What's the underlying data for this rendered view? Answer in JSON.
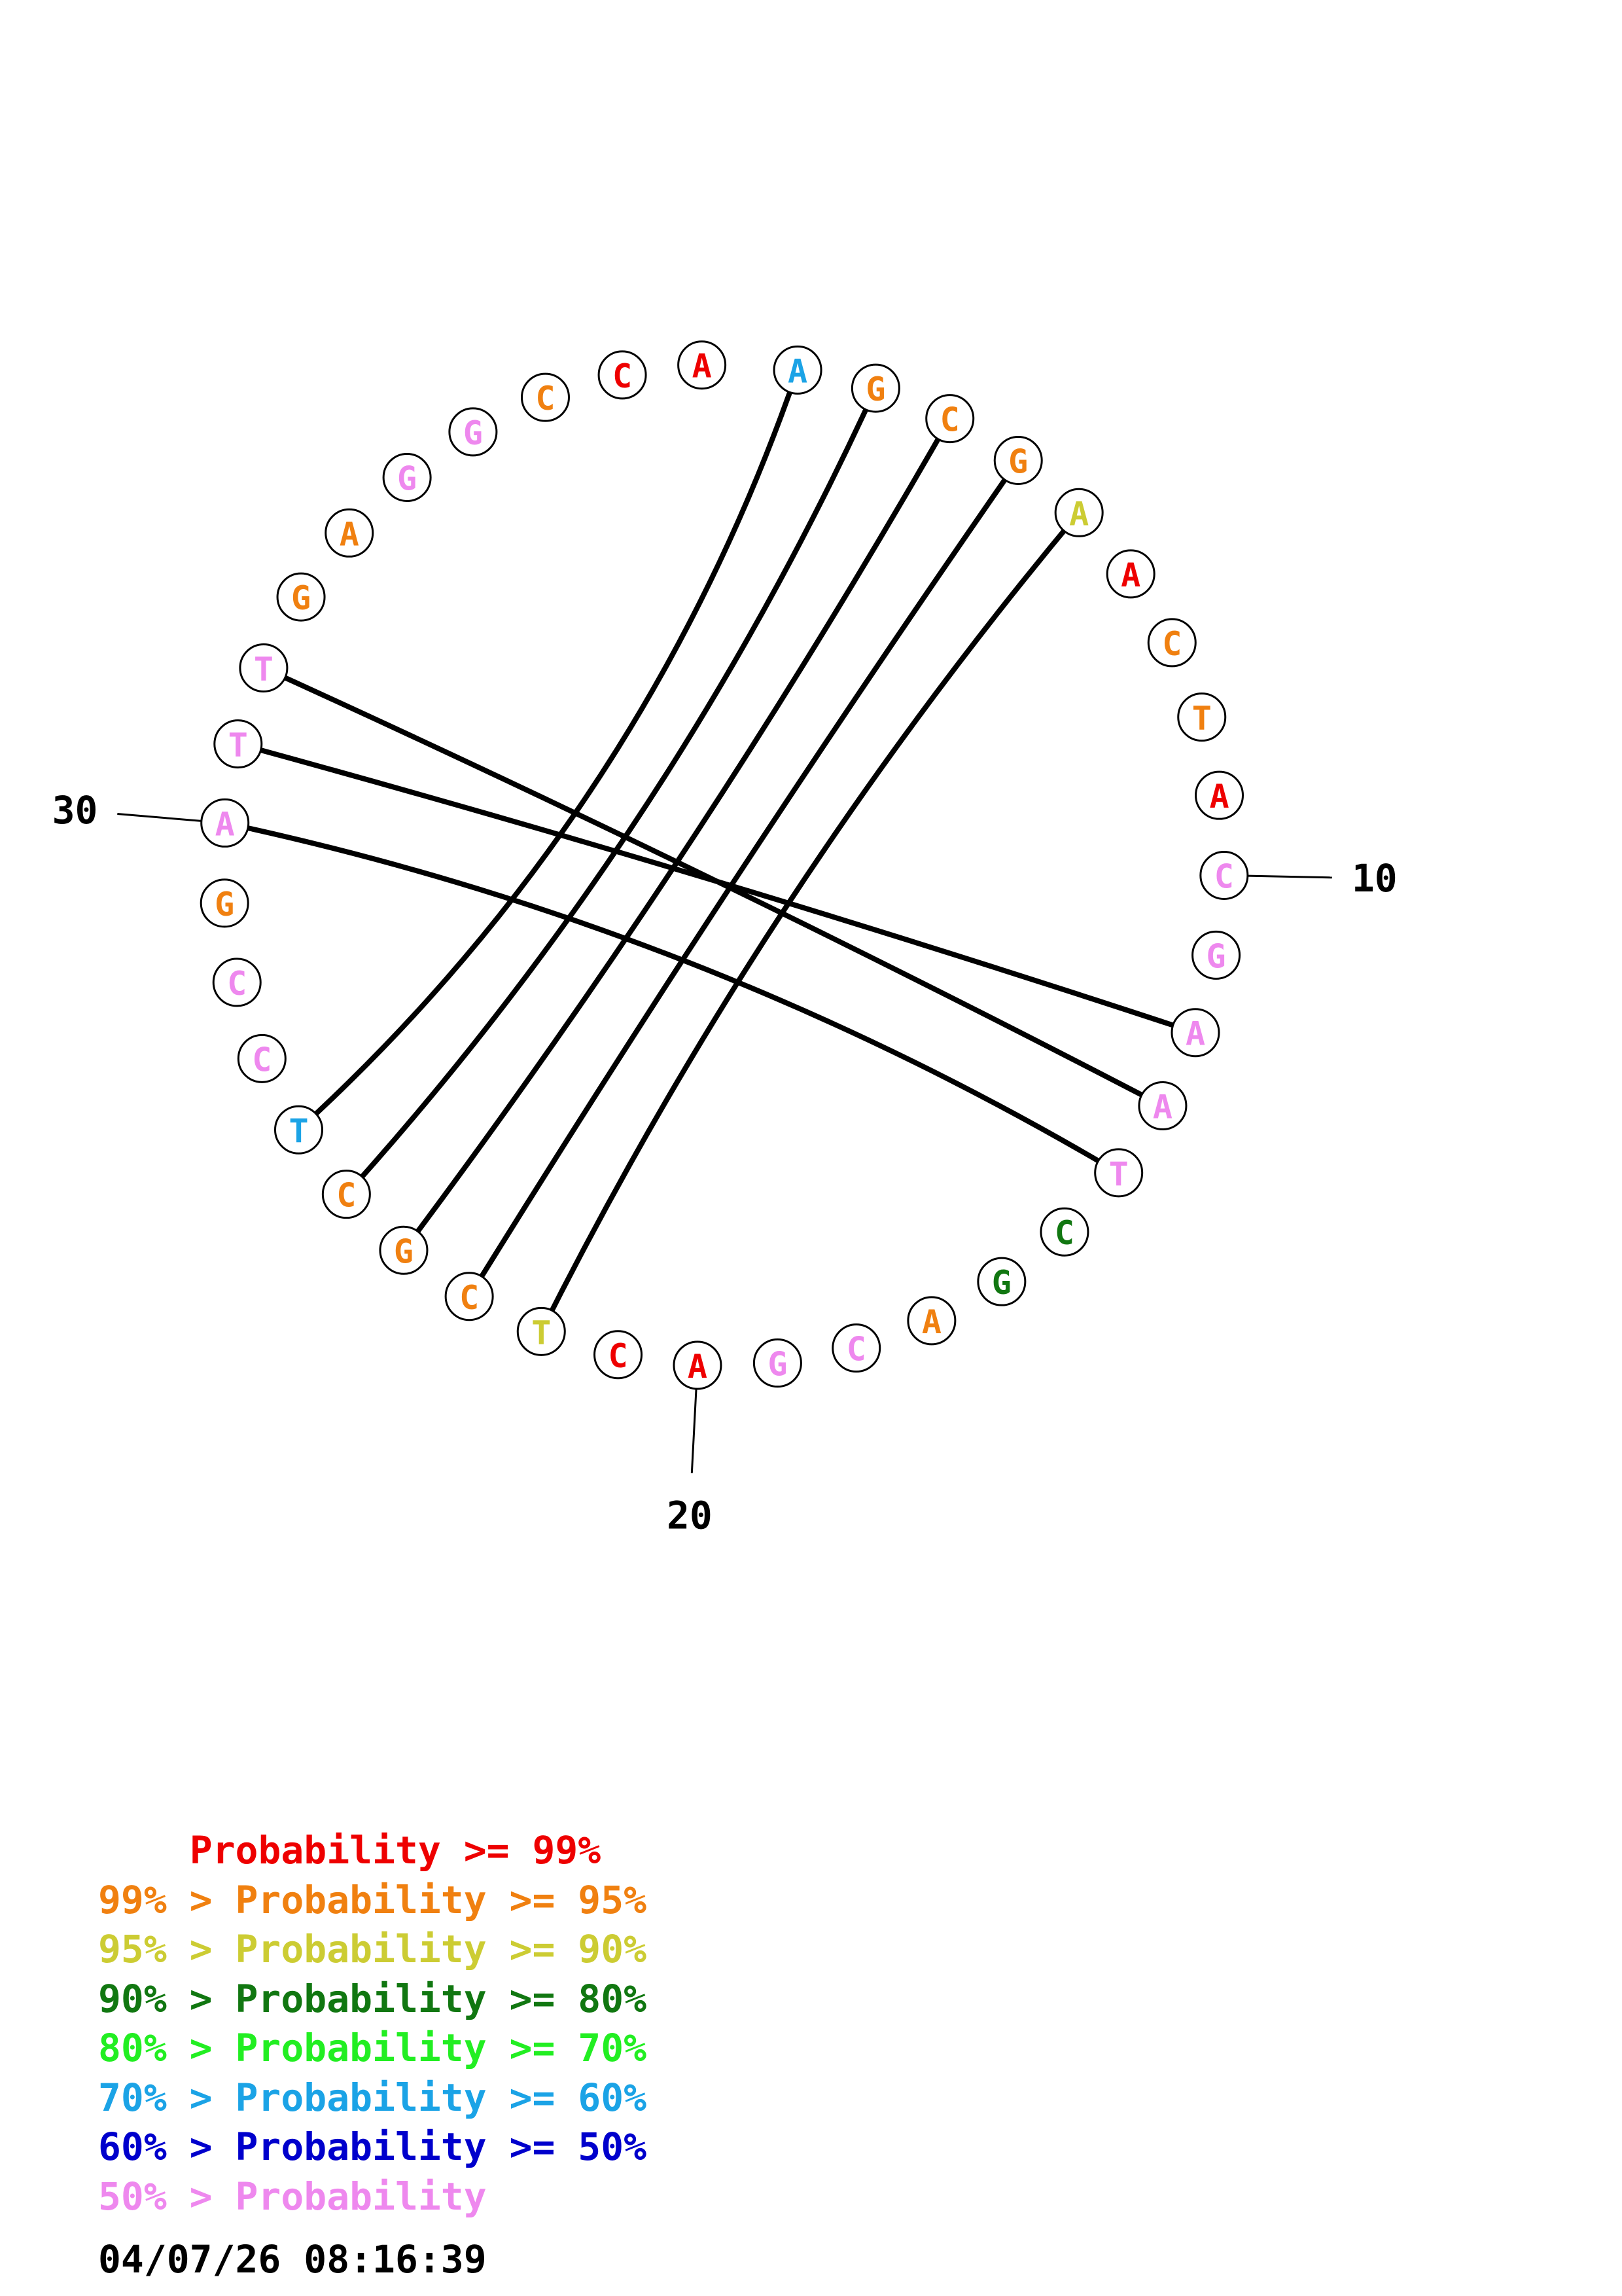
{
  "colors": {
    "p99": "#ee0000",
    "p95": "#f08010",
    "p90": "#cccc33",
    "p80": "#117711",
    "p70": "#22ee22",
    "p60": "#1ba3e6",
    "p50": "#0000cc",
    "low": "#ee88ee"
  },
  "nucleotides": [
    {
      "base": "A",
      "color": "#1ba3e6"
    },
    {
      "base": "G",
      "color": "#f08010"
    },
    {
      "base": "C",
      "color": "#f08010"
    },
    {
      "base": "G",
      "color": "#f08010"
    },
    {
      "base": "A",
      "color": "#cccc33"
    },
    {
      "base": "A",
      "color": "#ee0000"
    },
    {
      "base": "C",
      "color": "#f08010"
    },
    {
      "base": "T",
      "color": "#f08010"
    },
    {
      "base": "A",
      "color": "#ee0000"
    },
    {
      "base": "C",
      "color": "#ee88ee"
    },
    {
      "base": "G",
      "color": "#ee88ee"
    },
    {
      "base": "A",
      "color": "#ee88ee"
    },
    {
      "base": "A",
      "color": "#ee88ee"
    },
    {
      "base": "T",
      "color": "#ee88ee"
    },
    {
      "base": "C",
      "color": "#117711"
    },
    {
      "base": "G",
      "color": "#117711"
    },
    {
      "base": "A",
      "color": "#f08010"
    },
    {
      "base": "C",
      "color": "#ee88ee"
    },
    {
      "base": "G",
      "color": "#ee88ee"
    },
    {
      "base": "A",
      "color": "#ee0000"
    },
    {
      "base": "C",
      "color": "#ee0000"
    },
    {
      "base": "T",
      "color": "#cccc33"
    },
    {
      "base": "C",
      "color": "#f08010"
    },
    {
      "base": "G",
      "color": "#f08010"
    },
    {
      "base": "C",
      "color": "#f08010"
    },
    {
      "base": "T",
      "color": "#1ba3e6"
    },
    {
      "base": "C",
      "color": "#ee88ee"
    },
    {
      "base": "C",
      "color": "#ee88ee"
    },
    {
      "base": "G",
      "color": "#f08010"
    },
    {
      "base": "A",
      "color": "#ee88ee"
    },
    {
      "base": "T",
      "color": "#ee88ee"
    },
    {
      "base": "T",
      "color": "#ee88ee"
    },
    {
      "base": "G",
      "color": "#f08010"
    },
    {
      "base": "A",
      "color": "#f08010"
    },
    {
      "base": "G",
      "color": "#ee88ee"
    },
    {
      "base": "G",
      "color": "#ee88ee"
    },
    {
      "base": "C",
      "color": "#f08010"
    },
    {
      "base": "C",
      "color": "#ee0000"
    },
    {
      "base": "A",
      "color": "#ee0000"
    }
  ],
  "pairs": [
    [
      1,
      26
    ],
    [
      2,
      25
    ],
    [
      3,
      24
    ],
    [
      4,
      23
    ],
    [
      5,
      22
    ],
    [
      12,
      31
    ],
    [
      13,
      32
    ],
    [
      14,
      30
    ]
  ],
  "tick_labels": [
    {
      "label": "10",
      "index": 10
    },
    {
      "label": "20",
      "index": 20
    },
    {
      "label": "30",
      "index": 30
    }
  ],
  "legend": [
    {
      "prefix": "    ",
      "text": "Probability >= 99%",
      "color": "#ee0000"
    },
    {
      "prefix": "99% > ",
      "text": "Probability >= 95%",
      "color": "#f08010"
    },
    {
      "prefix": "95% > ",
      "text": "Probability >= 90%",
      "color": "#cccc33"
    },
    {
      "prefix": "90% > ",
      "text": "Probability >= 80%",
      "color": "#117711"
    },
    {
      "prefix": "80% > ",
      "text": "Probability >= 70%",
      "color": "#22ee22"
    },
    {
      "prefix": "70% > ",
      "text": "Probability >= 60%",
      "color": "#1ba3e6"
    },
    {
      "prefix": "60% > ",
      "text": "Probability >= 50%",
      "color": "#0000cc"
    },
    {
      "prefix": "50% > ",
      "text": "Probability",
      "color": "#ee88ee"
    }
  ],
  "timestamp": "04/07/26 08:16:39"
}
